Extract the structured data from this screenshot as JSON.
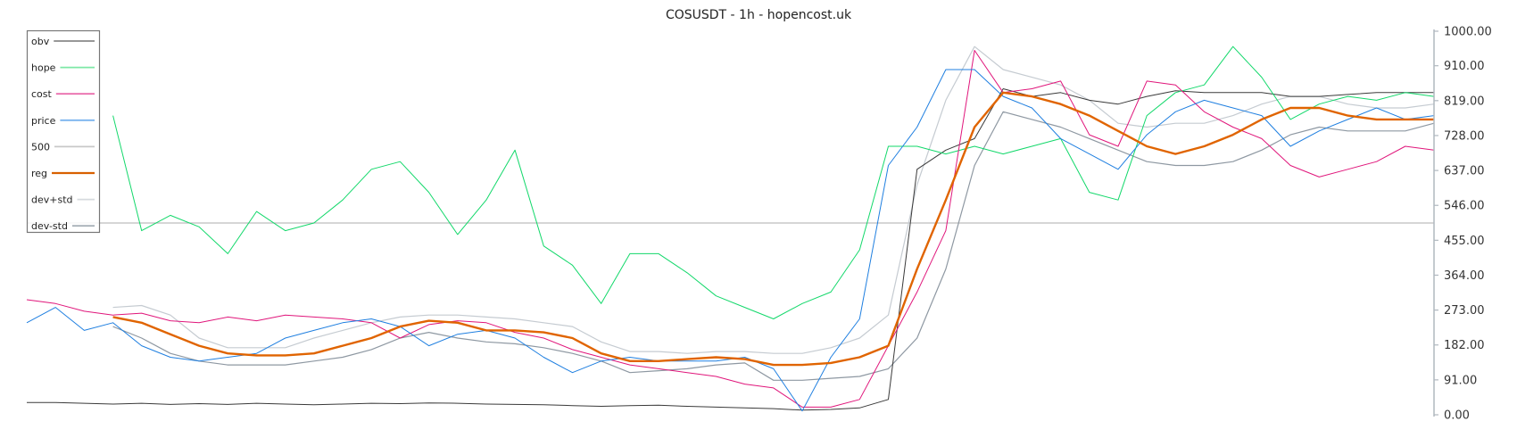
{
  "chart_data": {
    "type": "line",
    "title": "COSUSDT - 1h - hopencost.uk",
    "xlabel": "",
    "ylabel": "",
    "ylim": [
      0,
      1000
    ],
    "yticks": [
      "0.00",
      "91.00",
      "182.00",
      "273.00",
      "364.00",
      "455.00",
      "546.00",
      "637.00",
      "728.00",
      "819.00",
      "910.00",
      "1000.00"
    ],
    "ytick_values": [
      0,
      91,
      182,
      273,
      364,
      455,
      546,
      637,
      728,
      819,
      910,
      1000
    ],
    "grid": false,
    "legend_position": "top-left",
    "x_points": 50,
    "series": [
      {
        "name": "obv",
        "color": "#3a3a3a",
        "width": 1,
        "values": [
          32,
          32,
          30,
          28,
          30,
          27,
          29,
          27,
          30,
          28,
          26,
          28,
          30,
          29,
          31,
          30,
          28,
          27,
          26,
          24,
          22,
          24,
          25,
          22,
          20,
          18,
          16,
          12,
          14,
          18,
          40,
          640,
          690,
          720,
          850,
          830,
          840,
          820,
          810,
          830,
          845,
          840,
          840,
          840,
          830,
          830,
          835,
          840,
          840,
          840
        ]
      },
      {
        "name": "hope",
        "color": "#12d86a",
        "width": 1,
        "values": [
          null,
          null,
          null,
          780,
          480,
          520,
          490,
          420,
          530,
          480,
          500,
          560,
          640,
          660,
          580,
          470,
          560,
          690,
          440,
          390,
          290,
          420,
          420,
          370,
          310,
          280,
          250,
          290,
          320,
          430,
          700,
          700,
          680,
          700,
          680,
          700,
          720,
          580,
          560,
          780,
          840,
          860,
          960,
          880,
          770,
          810,
          830,
          820,
          840,
          830
        ]
      },
      {
        "name": "cost",
        "color": "#e0167b",
        "width": 1,
        "values": [
          300,
          290,
          270,
          260,
          265,
          245,
          240,
          255,
          245,
          260,
          255,
          250,
          240,
          200,
          235,
          245,
          240,
          215,
          200,
          170,
          150,
          130,
          120,
          110,
          100,
          80,
          70,
          20,
          20,
          40,
          180,
          320,
          480,
          950,
          840,
          850,
          870,
          730,
          700,
          870,
          860,
          790,
          750,
          720,
          650,
          620,
          640,
          660,
          700,
          690
        ]
      },
      {
        "name": "price",
        "color": "#1f7fe0",
        "width": 1,
        "values": [
          240,
          280,
          220,
          240,
          180,
          150,
          140,
          150,
          160,
          200,
          220,
          240,
          250,
          230,
          180,
          210,
          220,
          200,
          150,
          110,
          140,
          150,
          140,
          140,
          140,
          150,
          120,
          10,
          150,
          250,
          650,
          750,
          900,
          900,
          830,
          800,
          720,
          680,
          640,
          730,
          790,
          820,
          800,
          780,
          700,
          740,
          770,
          800,
          770,
          780
        ]
      },
      {
        "name": "500",
        "color": "#bdbdbd",
        "width": 1.3,
        "values": [
          500,
          500,
          500,
          500,
          500,
          500,
          500,
          500,
          500,
          500,
          500,
          500,
          500,
          500,
          500,
          500,
          500,
          500,
          500,
          500,
          500,
          500,
          500,
          500,
          500,
          500,
          500,
          500,
          500,
          500,
          500,
          500,
          500,
          500,
          500,
          500,
          500,
          500,
          500,
          500,
          500,
          500,
          500,
          500,
          500,
          500,
          500,
          500,
          500,
          500
        ]
      },
      {
        "name": "reg",
        "color": "#e06400",
        "width": 2.4,
        "values": [
          null,
          null,
          null,
          255,
          240,
          210,
          180,
          160,
          155,
          155,
          160,
          180,
          200,
          230,
          245,
          240,
          220,
          220,
          215,
          200,
          160,
          140,
          140,
          145,
          150,
          145,
          130,
          130,
          135,
          150,
          180,
          380,
          560,
          750,
          840,
          830,
          810,
          780,
          740,
          700,
          680,
          700,
          730,
          770,
          800,
          800,
          780,
          770,
          770,
          770
        ]
      },
      {
        "name": "dev+std",
        "color": "#c5cbd1",
        "width": 1.2,
        "values": [
          null,
          null,
          null,
          280,
          285,
          260,
          200,
          175,
          175,
          175,
          200,
          220,
          240,
          255,
          260,
          260,
          255,
          250,
          240,
          230,
          190,
          165,
          165,
          160,
          165,
          165,
          160,
          160,
          175,
          200,
          260,
          600,
          820,
          960,
          900,
          880,
          860,
          820,
          760,
          750,
          760,
          760,
          780,
          810,
          830,
          830,
          810,
          800,
          800,
          810
        ]
      },
      {
        "name": "dev-std",
        "color": "#8e98a2",
        "width": 1.2,
        "values": [
          null,
          null,
          null,
          230,
          200,
          160,
          140,
          130,
          130,
          130,
          140,
          150,
          170,
          200,
          215,
          200,
          190,
          185,
          175,
          160,
          140,
          110,
          115,
          120,
          130,
          135,
          90,
          90,
          95,
          100,
          120,
          200,
          380,
          650,
          790,
          770,
          750,
          720,
          690,
          660,
          650,
          650,
          660,
          690,
          730,
          750,
          740,
          740,
          740,
          760
        ]
      }
    ]
  }
}
